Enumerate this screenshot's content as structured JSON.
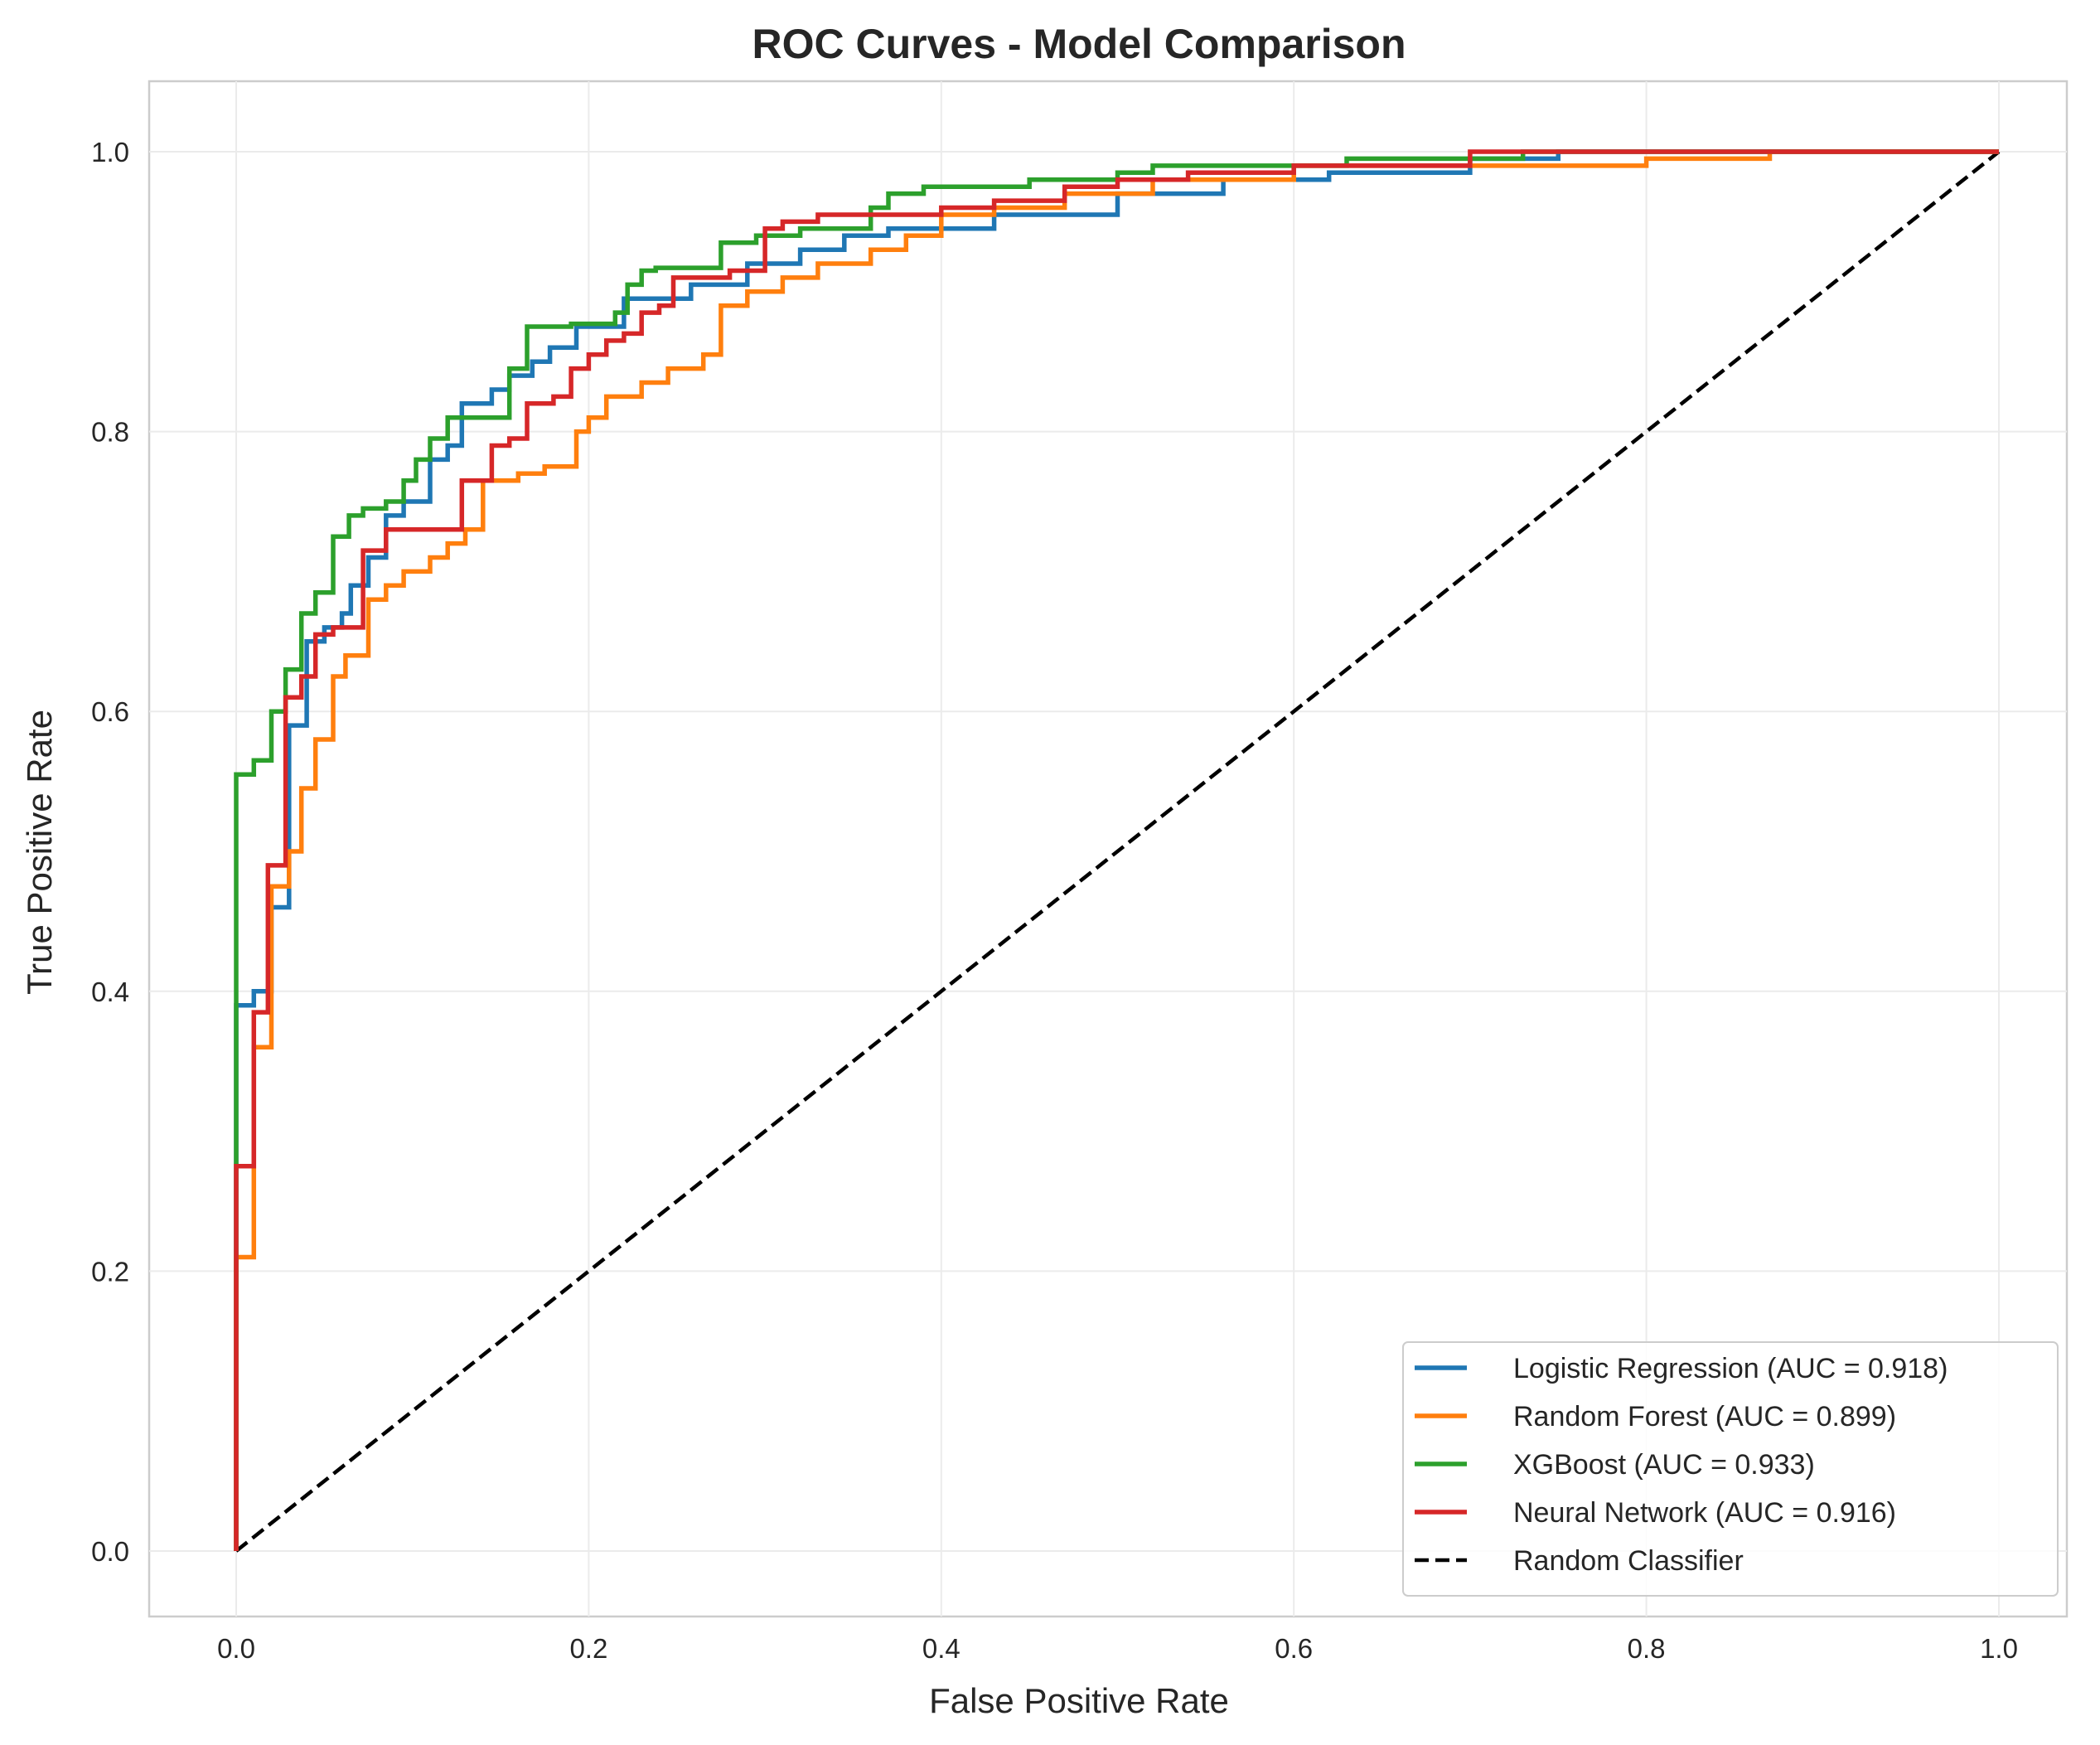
{
  "chart_data": {
    "type": "line",
    "title": "ROC Curves - Model Comparison",
    "xlabel": "False Positive Rate",
    "ylabel": "True Positive Rate",
    "xlim": [
      -0.05,
      1.05
    ],
    "ylim": [
      -0.05,
      1.05
    ],
    "xticks": [
      "0.0",
      "0.2",
      "0.4",
      "0.6",
      "0.8",
      "1.0"
    ],
    "yticks": [
      "0.0",
      "0.2",
      "0.4",
      "0.6",
      "0.8",
      "1.0"
    ],
    "grid": true,
    "legend_position": "lower right",
    "series": [
      {
        "name": "Logistic Regression (AUC = 0.918)",
        "color": "#1f77b4",
        "points": [
          [
            0,
            0
          ],
          [
            0,
            0.39
          ],
          [
            0.01,
            0.39
          ],
          [
            0.01,
            0.4
          ],
          [
            0.02,
            0.4
          ],
          [
            0.02,
            0.46
          ],
          [
            0.03,
            0.46
          ],
          [
            0.03,
            0.59
          ],
          [
            0.04,
            0.59
          ],
          [
            0.04,
            0.65
          ],
          [
            0.05,
            0.65
          ],
          [
            0.05,
            0.66
          ],
          [
            0.06,
            0.66
          ],
          [
            0.06,
            0.67
          ],
          [
            0.065,
            0.67
          ],
          [
            0.065,
            0.69
          ],
          [
            0.075,
            0.69
          ],
          [
            0.075,
            0.71
          ],
          [
            0.085,
            0.71
          ],
          [
            0.085,
            0.74
          ],
          [
            0.095,
            0.74
          ],
          [
            0.095,
            0.75
          ],
          [
            0.11,
            0.75
          ],
          [
            0.11,
            0.78
          ],
          [
            0.12,
            0.78
          ],
          [
            0.12,
            0.79
          ],
          [
            0.128,
            0.79
          ],
          [
            0.128,
            0.82
          ],
          [
            0.145,
            0.82
          ],
          [
            0.145,
            0.83
          ],
          [
            0.155,
            0.83
          ],
          [
            0.155,
            0.84
          ],
          [
            0.168,
            0.84
          ],
          [
            0.168,
            0.85
          ],
          [
            0.178,
            0.85
          ],
          [
            0.178,
            0.86
          ],
          [
            0.193,
            0.86
          ],
          [
            0.193,
            0.875
          ],
          [
            0.22,
            0.875
          ],
          [
            0.22,
            0.895
          ],
          [
            0.258,
            0.895
          ],
          [
            0.258,
            0.905
          ],
          [
            0.29,
            0.905
          ],
          [
            0.29,
            0.92
          ],
          [
            0.32,
            0.92
          ],
          [
            0.32,
            0.93
          ],
          [
            0.345,
            0.93
          ],
          [
            0.345,
            0.94
          ],
          [
            0.37,
            0.94
          ],
          [
            0.37,
            0.945
          ],
          [
            0.43,
            0.945
          ],
          [
            0.43,
            0.955
          ],
          [
            0.5,
            0.955
          ],
          [
            0.5,
            0.97
          ],
          [
            0.56,
            0.97
          ],
          [
            0.56,
            0.98
          ],
          [
            0.62,
            0.98
          ],
          [
            0.62,
            0.985
          ],
          [
            0.7,
            0.985
          ],
          [
            0.7,
            0.995
          ],
          [
            0.75,
            0.995
          ],
          [
            0.75,
            1.0
          ],
          [
            1.0,
            1.0
          ]
        ]
      },
      {
        "name": "Random Forest (AUC = 0.899)",
        "color": "#ff7f0e",
        "points": [
          [
            0,
            0
          ],
          [
            0,
            0.21
          ],
          [
            0.01,
            0.21
          ],
          [
            0.01,
            0.36
          ],
          [
            0.02,
            0.36
          ],
          [
            0.02,
            0.475
          ],
          [
            0.03,
            0.475
          ],
          [
            0.03,
            0.5
          ],
          [
            0.037,
            0.5
          ],
          [
            0.037,
            0.545
          ],
          [
            0.045,
            0.545
          ],
          [
            0.045,
            0.58
          ],
          [
            0.055,
            0.58
          ],
          [
            0.055,
            0.625
          ],
          [
            0.062,
            0.625
          ],
          [
            0.062,
            0.64
          ],
          [
            0.075,
            0.64
          ],
          [
            0.075,
            0.68
          ],
          [
            0.085,
            0.68
          ],
          [
            0.085,
            0.69
          ],
          [
            0.095,
            0.69
          ],
          [
            0.095,
            0.7
          ],
          [
            0.11,
            0.7
          ],
          [
            0.11,
            0.71
          ],
          [
            0.12,
            0.71
          ],
          [
            0.12,
            0.72
          ],
          [
            0.13,
            0.72
          ],
          [
            0.13,
            0.73
          ],
          [
            0.14,
            0.73
          ],
          [
            0.14,
            0.765
          ],
          [
            0.16,
            0.765
          ],
          [
            0.16,
            0.77
          ],
          [
            0.175,
            0.77
          ],
          [
            0.175,
            0.775
          ],
          [
            0.193,
            0.775
          ],
          [
            0.193,
            0.8
          ],
          [
            0.2,
            0.8
          ],
          [
            0.2,
            0.81
          ],
          [
            0.21,
            0.81
          ],
          [
            0.21,
            0.825
          ],
          [
            0.23,
            0.825
          ],
          [
            0.23,
            0.835
          ],
          [
            0.245,
            0.835
          ],
          [
            0.245,
            0.845
          ],
          [
            0.265,
            0.845
          ],
          [
            0.265,
            0.855
          ],
          [
            0.275,
            0.855
          ],
          [
            0.275,
            0.89
          ],
          [
            0.29,
            0.89
          ],
          [
            0.29,
            0.9
          ],
          [
            0.31,
            0.9
          ],
          [
            0.31,
            0.91
          ],
          [
            0.33,
            0.91
          ],
          [
            0.33,
            0.92
          ],
          [
            0.36,
            0.92
          ],
          [
            0.36,
            0.93
          ],
          [
            0.38,
            0.93
          ],
          [
            0.38,
            0.94
          ],
          [
            0.4,
            0.94
          ],
          [
            0.4,
            0.955
          ],
          [
            0.43,
            0.955
          ],
          [
            0.43,
            0.96
          ],
          [
            0.47,
            0.96
          ],
          [
            0.47,
            0.97
          ],
          [
            0.52,
            0.97
          ],
          [
            0.52,
            0.98
          ],
          [
            0.6,
            0.98
          ],
          [
            0.6,
            0.99
          ],
          [
            0.8,
            0.99
          ],
          [
            0.8,
            0.995
          ],
          [
            0.87,
            0.995
          ],
          [
            0.87,
            1.0
          ],
          [
            1.0,
            1.0
          ]
        ]
      },
      {
        "name": "XGBoost (AUC = 0.933)",
        "color": "#2ca02c",
        "points": [
          [
            0,
            0
          ],
          [
            0,
            0.555
          ],
          [
            0.01,
            0.555
          ],
          [
            0.01,
            0.565
          ],
          [
            0.02,
            0.565
          ],
          [
            0.02,
            0.6
          ],
          [
            0.028,
            0.6
          ],
          [
            0.028,
            0.63
          ],
          [
            0.037,
            0.63
          ],
          [
            0.037,
            0.67
          ],
          [
            0.045,
            0.67
          ],
          [
            0.045,
            0.685
          ],
          [
            0.055,
            0.685
          ],
          [
            0.055,
            0.725
          ],
          [
            0.064,
            0.725
          ],
          [
            0.064,
            0.74
          ],
          [
            0.072,
            0.74
          ],
          [
            0.072,
            0.745
          ],
          [
            0.085,
            0.745
          ],
          [
            0.085,
            0.75
          ],
          [
            0.095,
            0.75
          ],
          [
            0.095,
            0.765
          ],
          [
            0.102,
            0.765
          ],
          [
            0.102,
            0.78
          ],
          [
            0.11,
            0.78
          ],
          [
            0.11,
            0.795
          ],
          [
            0.12,
            0.795
          ],
          [
            0.12,
            0.81
          ],
          [
            0.155,
            0.81
          ],
          [
            0.155,
            0.845
          ],
          [
            0.165,
            0.845
          ],
          [
            0.165,
            0.875
          ],
          [
            0.19,
            0.875
          ],
          [
            0.19,
            0.877
          ],
          [
            0.215,
            0.877
          ],
          [
            0.215,
            0.885
          ],
          [
            0.222,
            0.885
          ],
          [
            0.222,
            0.905
          ],
          [
            0.23,
            0.905
          ],
          [
            0.23,
            0.915
          ],
          [
            0.238,
            0.915
          ],
          [
            0.238,
            0.917
          ],
          [
            0.275,
            0.917
          ],
          [
            0.275,
            0.935
          ],
          [
            0.295,
            0.935
          ],
          [
            0.295,
            0.94
          ],
          [
            0.32,
            0.94
          ],
          [
            0.32,
            0.945
          ],
          [
            0.36,
            0.945
          ],
          [
            0.36,
            0.96
          ],
          [
            0.37,
            0.96
          ],
          [
            0.37,
            0.97
          ],
          [
            0.39,
            0.97
          ],
          [
            0.39,
            0.975
          ],
          [
            0.45,
            0.975
          ],
          [
            0.45,
            0.98
          ],
          [
            0.5,
            0.98
          ],
          [
            0.5,
            0.985
          ],
          [
            0.52,
            0.985
          ],
          [
            0.52,
            0.99
          ],
          [
            0.63,
            0.99
          ],
          [
            0.63,
            0.995
          ],
          [
            0.73,
            0.995
          ],
          [
            0.73,
            1.0
          ],
          [
            1.0,
            1.0
          ]
        ]
      },
      {
        "name": "Neural Network (AUC = 0.916)",
        "color": "#d62728",
        "points": [
          [
            0,
            0
          ],
          [
            0,
            0.275
          ],
          [
            0.01,
            0.275
          ],
          [
            0.01,
            0.385
          ],
          [
            0.018,
            0.385
          ],
          [
            0.018,
            0.49
          ],
          [
            0.028,
            0.49
          ],
          [
            0.028,
            0.61
          ],
          [
            0.037,
            0.61
          ],
          [
            0.037,
            0.625
          ],
          [
            0.045,
            0.625
          ],
          [
            0.045,
            0.655
          ],
          [
            0.055,
            0.655
          ],
          [
            0.055,
            0.66
          ],
          [
            0.072,
            0.66
          ],
          [
            0.072,
            0.715
          ],
          [
            0.085,
            0.715
          ],
          [
            0.085,
            0.73
          ],
          [
            0.128,
            0.73
          ],
          [
            0.128,
            0.765
          ],
          [
            0.145,
            0.765
          ],
          [
            0.145,
            0.79
          ],
          [
            0.155,
            0.79
          ],
          [
            0.155,
            0.795
          ],
          [
            0.165,
            0.795
          ],
          [
            0.165,
            0.82
          ],
          [
            0.18,
            0.82
          ],
          [
            0.18,
            0.825
          ],
          [
            0.19,
            0.825
          ],
          [
            0.19,
            0.845
          ],
          [
            0.2,
            0.845
          ],
          [
            0.2,
            0.855
          ],
          [
            0.21,
            0.855
          ],
          [
            0.21,
            0.865
          ],
          [
            0.22,
            0.865
          ],
          [
            0.22,
            0.87
          ],
          [
            0.23,
            0.87
          ],
          [
            0.23,
            0.885
          ],
          [
            0.24,
            0.885
          ],
          [
            0.24,
            0.89
          ],
          [
            0.248,
            0.89
          ],
          [
            0.248,
            0.91
          ],
          [
            0.28,
            0.91
          ],
          [
            0.28,
            0.915
          ],
          [
            0.3,
            0.915
          ],
          [
            0.3,
            0.945
          ],
          [
            0.31,
            0.945
          ],
          [
            0.31,
            0.95
          ],
          [
            0.33,
            0.95
          ],
          [
            0.33,
            0.955
          ],
          [
            0.4,
            0.955
          ],
          [
            0.4,
            0.96
          ],
          [
            0.43,
            0.96
          ],
          [
            0.43,
            0.965
          ],
          [
            0.47,
            0.965
          ],
          [
            0.47,
            0.975
          ],
          [
            0.5,
            0.975
          ],
          [
            0.5,
            0.98
          ],
          [
            0.54,
            0.98
          ],
          [
            0.54,
            0.985
          ],
          [
            0.6,
            0.985
          ],
          [
            0.6,
            0.99
          ],
          [
            0.7,
            0.99
          ],
          [
            0.7,
            1.0
          ],
          [
            1.0,
            1.0
          ]
        ]
      }
    ],
    "reference_line": {
      "name": "Random Classifier",
      "color": "#000000",
      "style": "dashed",
      "points": [
        [
          0,
          0
        ],
        [
          1,
          1
        ]
      ]
    }
  }
}
